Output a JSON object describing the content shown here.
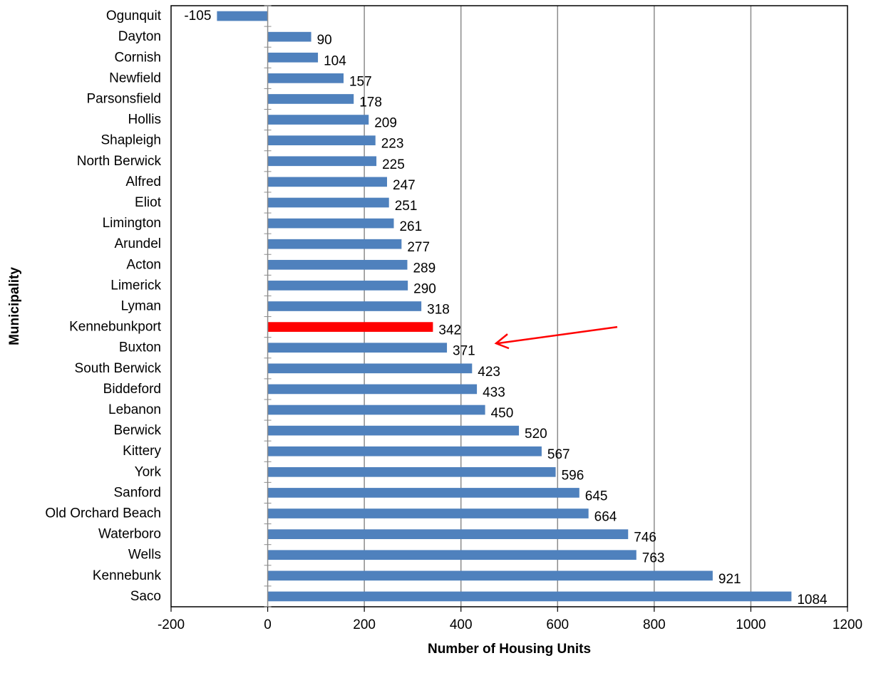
{
  "chart_data": {
    "type": "bar",
    "orientation": "horizontal",
    "title": "",
    "xlabel": "Number of Housing Units",
    "ylabel": "Municipality",
    "xlim": [
      -200,
      1200
    ],
    "x_ticks": [
      -200,
      0,
      200,
      400,
      600,
      800,
      1000,
      1200
    ],
    "grid": "vertical major gridlines",
    "legend": "none",
    "categories": [
      "Ogunquit",
      "Dayton",
      "Cornish",
      "Newfield",
      "Parsonsfield",
      "Hollis",
      "Shapleigh",
      "North Berwick",
      "Alfred",
      "Eliot",
      "Limington",
      "Arundel",
      "Acton",
      "Limerick",
      "Lyman",
      "Kennebunkport",
      "Buxton",
      "South Berwick",
      "Biddeford",
      "Lebanon",
      "Berwick",
      "Kittery",
      "York",
      "Sanford",
      "Old Orchard Beach",
      "Waterboro",
      "Wells",
      "Kennebunk",
      "Saco"
    ],
    "values": [
      -105,
      90,
      104,
      157,
      178,
      209,
      223,
      225,
      247,
      251,
      261,
      277,
      289,
      290,
      318,
      342,
      371,
      423,
      433,
      450,
      520,
      567,
      596,
      645,
      664,
      746,
      763,
      921,
      1084
    ],
    "highlighted_category": "Kennebunkport",
    "bar_color": "#4f81bd",
    "highlight_color": "#ff0000",
    "annotation": {
      "type": "arrow",
      "color": "#ff0000",
      "points_to": "Kennebunkport"
    }
  }
}
